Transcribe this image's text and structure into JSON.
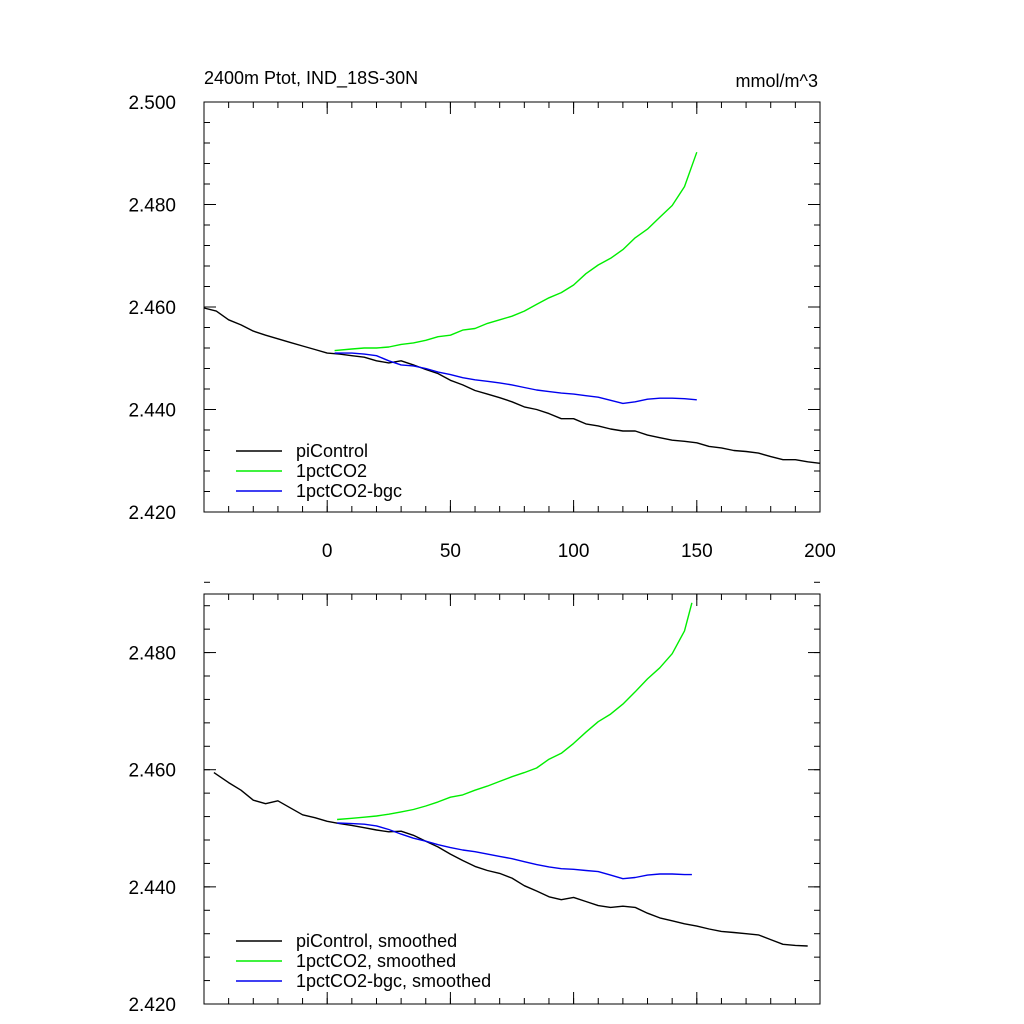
{
  "chart_data": [
    {
      "type": "line",
      "title": "2400m Ptot, IND_18S-30N",
      "units": "mmol/m^3",
      "xlim": [
        -50,
        200
      ],
      "ylim": [
        2.42,
        2.5
      ],
      "xticks": [
        0,
        50,
        100,
        150,
        200
      ],
      "xtick_labels": [
        "0",
        "50",
        "100",
        "150",
        "200"
      ],
      "yticks": [
        2.42,
        2.44,
        2.46,
        2.48,
        2.5
      ],
      "ytick_labels": [
        "2.420",
        "2.440",
        "2.460",
        "2.480",
        "2.500"
      ],
      "legend_position": "bottom-left",
      "series": [
        {
          "name": "piControl",
          "color": "#000000",
          "x": [
            -50,
            -45,
            -40,
            -35,
            -30,
            -25,
            -20,
            -15,
            -10,
            -5,
            0,
            5,
            10,
            15,
            20,
            25,
            30,
            35,
            40,
            45,
            50,
            55,
            60,
            65,
            70,
            75,
            80,
            85,
            90,
            95,
            100,
            105,
            110,
            115,
            120,
            125,
            130,
            135,
            140,
            145,
            150,
            155,
            160,
            165,
            170,
            175,
            180,
            185,
            190,
            195,
            200
          ],
          "y": [
            2.4598,
            2.4592,
            2.4575,
            2.4565,
            2.4553,
            2.4545,
            2.4538,
            2.4531,
            2.4524,
            2.4517,
            2.451,
            2.4508,
            2.4505,
            2.4502,
            2.4495,
            2.4491,
            2.4495,
            2.4487,
            2.4478,
            2.447,
            2.4457,
            2.4448,
            2.4437,
            2.443,
            2.4423,
            2.4415,
            2.4405,
            2.44,
            2.4392,
            2.4382,
            2.4382,
            2.4372,
            2.4368,
            2.4362,
            2.4358,
            2.4358,
            2.435,
            2.4345,
            2.434,
            2.4338,
            2.4335,
            2.4328,
            2.4325,
            2.432,
            2.4318,
            2.4315,
            2.4308,
            2.4302,
            2.4302,
            2.4298,
            2.4295
          ]
        },
        {
          "name": "1pctCO2",
          "color": "#00ee00",
          "x": [
            3,
            10,
            15,
            20,
            25,
            30,
            35,
            40,
            45,
            50,
            55,
            60,
            65,
            70,
            75,
            80,
            85,
            90,
            95,
            100,
            105,
            110,
            115,
            120,
            125,
            130,
            135,
            140,
            145,
            150
          ],
          "y": [
            2.4515,
            2.4518,
            2.452,
            2.452,
            2.4522,
            2.4527,
            2.453,
            2.4535,
            2.4542,
            2.4545,
            2.4555,
            2.4558,
            2.4568,
            2.4575,
            2.4582,
            2.4592,
            2.4605,
            2.4618,
            2.4628,
            2.4643,
            2.4665,
            2.4682,
            2.4695,
            2.4712,
            2.4735,
            2.4752,
            2.4775,
            2.4798,
            2.4835,
            2.4902
          ]
        },
        {
          "name": "1pctCO2-bgc",
          "color": "#0000ee",
          "x": [
            3,
            10,
            15,
            20,
            25,
            30,
            35,
            40,
            45,
            50,
            55,
            60,
            65,
            70,
            75,
            80,
            85,
            90,
            95,
            100,
            105,
            110,
            115,
            120,
            125,
            130,
            135,
            140,
            145,
            150
          ],
          "y": [
            2.451,
            2.451,
            2.4508,
            2.4505,
            2.4495,
            2.4487,
            2.4485,
            2.448,
            2.4473,
            2.4468,
            2.4462,
            2.4458,
            2.4455,
            2.4452,
            2.4448,
            2.4443,
            2.4438,
            2.4435,
            2.4432,
            2.443,
            2.4427,
            2.4424,
            2.4418,
            2.4412,
            2.4415,
            2.442,
            2.4422,
            2.4422,
            2.4421,
            2.4419
          ]
        }
      ]
    },
    {
      "type": "line",
      "xlim": [
        -50,
        200
      ],
      "ylim": [
        2.42,
        2.49
      ],
      "xticks": [
        0,
        50,
        100,
        150,
        200
      ],
      "yticks": [
        2.42,
        2.44,
        2.46,
        2.48
      ],
      "ytick_labels": [
        "2.420",
        "2.440",
        "2.460",
        "2.480"
      ],
      "legend_position": "bottom-left",
      "series": [
        {
          "name": "piControl, smoothed",
          "color": "#000000",
          "x": [
            -46,
            -40,
            -35,
            -30,
            -25,
            -20,
            -15,
            -10,
            -5,
            0,
            5,
            10,
            15,
            20,
            25,
            30,
            35,
            40,
            45,
            50,
            55,
            60,
            65,
            70,
            75,
            80,
            85,
            90,
            95,
            100,
            105,
            110,
            115,
            120,
            125,
            130,
            135,
            140,
            145,
            150,
            155,
            160,
            165,
            170,
            175,
            180,
            185,
            190,
            195
          ],
          "y": [
            2.4595,
            2.4578,
            2.4565,
            2.4548,
            2.4542,
            2.4547,
            2.4535,
            2.4523,
            2.4518,
            2.4512,
            2.4508,
            2.4505,
            2.4501,
            2.4497,
            2.4494,
            2.4495,
            2.4488,
            2.4478,
            2.4468,
            2.4456,
            2.4445,
            2.4435,
            2.4428,
            2.4423,
            2.4415,
            2.4402,
            2.4393,
            2.4383,
            2.4378,
            2.4382,
            2.4375,
            2.4368,
            2.4365,
            2.4367,
            2.4365,
            2.4355,
            2.4347,
            2.4342,
            2.4337,
            2.4333,
            2.4328,
            2.4324,
            2.4322,
            2.432,
            2.4318,
            2.431,
            2.4302,
            2.43,
            2.4299
          ]
        },
        {
          "name": "1pctCO2, smoothed",
          "color": "#00ee00",
          "x": [
            4,
            10,
            15,
            20,
            25,
            30,
            35,
            40,
            45,
            50,
            55,
            60,
            65,
            70,
            75,
            80,
            85,
            90,
            95,
            100,
            105,
            110,
            115,
            120,
            125,
            130,
            135,
            140,
            145,
            148
          ],
          "y": [
            2.4515,
            2.4517,
            2.4519,
            2.4521,
            2.4524,
            2.4528,
            2.4532,
            2.4538,
            2.4545,
            2.4553,
            2.4557,
            2.4565,
            2.4572,
            2.458,
            2.4588,
            2.4595,
            2.4603,
            2.4618,
            2.4628,
            2.4645,
            2.4664,
            2.4682,
            2.4695,
            2.4712,
            2.4733,
            2.4755,
            2.4774,
            2.4798,
            2.4837,
            2.4885
          ]
        },
        {
          "name": "1pctCO2-bgc, smoothed",
          "color": "#0000ee",
          "x": [
            4,
            10,
            15,
            20,
            25,
            30,
            35,
            40,
            45,
            50,
            55,
            60,
            65,
            70,
            75,
            80,
            85,
            90,
            95,
            100,
            105,
            110,
            115,
            120,
            125,
            130,
            135,
            140,
            145,
            148
          ],
          "y": [
            2.4509,
            2.4508,
            2.4507,
            2.4504,
            2.4498,
            2.449,
            2.4483,
            2.4478,
            2.4472,
            2.4467,
            2.4463,
            2.446,
            2.4456,
            2.4452,
            2.4448,
            2.4443,
            2.4438,
            2.4434,
            2.4431,
            2.443,
            2.4428,
            2.4426,
            2.442,
            2.4414,
            2.4416,
            2.442,
            2.4422,
            2.4422,
            2.4421,
            2.4421
          ]
        }
      ]
    }
  ]
}
